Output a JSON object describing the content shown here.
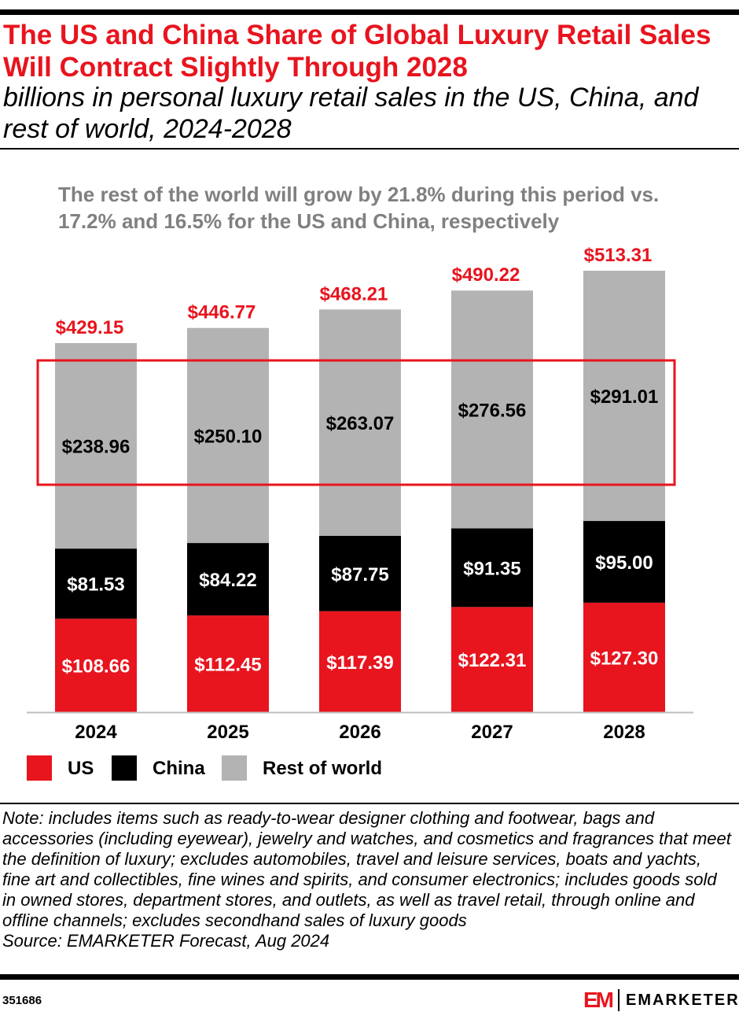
{
  "header": {
    "title": "The US and China Share of Global Luxury Retail Sales Will Contract Slightly Through 2028",
    "subtitle": "billions in personal luxury retail sales in the US, China, and rest of world, 2024-2028"
  },
  "callout": "The rest of the world will grow by 21.8% during this period vs. 17.2% and 16.5% for the US and China, respectively",
  "chart_data": {
    "type": "bar",
    "stacked": true,
    "categories": [
      "2024",
      "2025",
      "2026",
      "2027",
      "2028"
    ],
    "series": [
      {
        "name": "US",
        "color": "#e8141e",
        "values": [
          108.66,
          112.45,
          117.39,
          122.31,
          127.3
        ],
        "labels": [
          "$108.66",
          "$112.45",
          "$117.39",
          "$122.31",
          "$127.30"
        ]
      },
      {
        "name": "China",
        "color": "#000000",
        "values": [
          81.53,
          84.22,
          87.75,
          91.35,
          95.0
        ],
        "labels": [
          "$81.53",
          "$84.22",
          "$87.75",
          "$91.35",
          "$95.00"
        ]
      },
      {
        "name": "Rest of world",
        "color": "#b3b3b3",
        "values": [
          238.96,
          250.1,
          263.07,
          276.56,
          291.01
        ],
        "labels": [
          "$238.96",
          "$250.10",
          "$263.07",
          "$276.56",
          "$291.01"
        ]
      }
    ],
    "totals": [
      429.15,
      446.77,
      468.21,
      490.22,
      513.31
    ],
    "total_labels": [
      "$429.15",
      "$446.77",
      "$468.21",
      "$490.22",
      "$513.31"
    ],
    "total_label_color": "#e8141e",
    "highlight_color": "#e8141e",
    "legend_placement": "bottom-left",
    "grid": false
  },
  "footer": {
    "note": "Note: includes items such as ready-to-wear designer clothing and footwear, bags and accessories (including eyewear), jewelry and watches, and cosmetics and fragrances that meet the definition of luxury; excludes automobiles, travel and leisure services, boats and yachts, fine art and collectibles, fine wines and spirits, and consumer electronics; includes goods sold in owned stores, department stores, and outlets, as well as travel retail, through online and offline channels; excludes secondhand sales of luxury goods",
    "source": "Source:  EMARKETER Forecast, Aug 2024",
    "chart_id": "351686",
    "logo_mark": "EM",
    "logo_text": "EMARKETER"
  }
}
